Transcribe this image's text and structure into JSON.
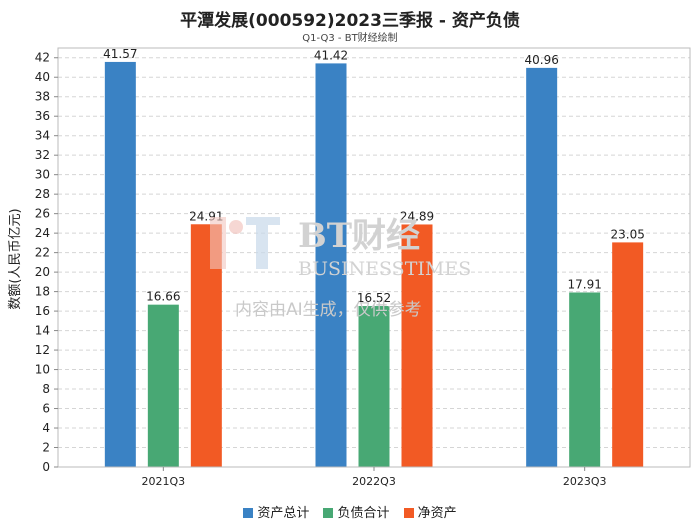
{
  "header": {
    "title": "平潭发展(000592)2023三季报 - 资产负债",
    "subtitle": "Q1-Q3 - BT财经绘制"
  },
  "watermark": {
    "logo_text": "BT财经",
    "logo_subtext": "BUSINESSTIMES",
    "notice": "内容由AI生成，仅供参考"
  },
  "chart_data": {
    "type": "bar",
    "title": "平潭发展(000592)2023三季报 - 资产负债",
    "subtitle": "Q1-Q3 - BT财经绘制",
    "xlabel": "",
    "ylabel": "数额(人民币亿元)",
    "categories": [
      "2021Q3",
      "2022Q3",
      "2023Q3"
    ],
    "series": [
      {
        "name": "资产总计",
        "color": "#3a82c4",
        "values": [
          41.57,
          41.42,
          40.96
        ]
      },
      {
        "name": "负债合计",
        "color": "#48a874",
        "values": [
          16.66,
          16.52,
          17.91
        ]
      },
      {
        "name": "净资产",
        "color": "#f25a24",
        "values": [
          24.91,
          24.89,
          23.05
        ]
      }
    ],
    "ylim": [
      0,
      43
    ],
    "yticks": [
      0,
      2,
      4,
      6,
      8,
      10,
      12,
      14,
      16,
      18,
      20,
      22,
      24,
      26,
      28,
      30,
      32,
      34,
      36,
      38,
      40,
      42
    ],
    "grid": true,
    "legend_position": "bottom"
  }
}
